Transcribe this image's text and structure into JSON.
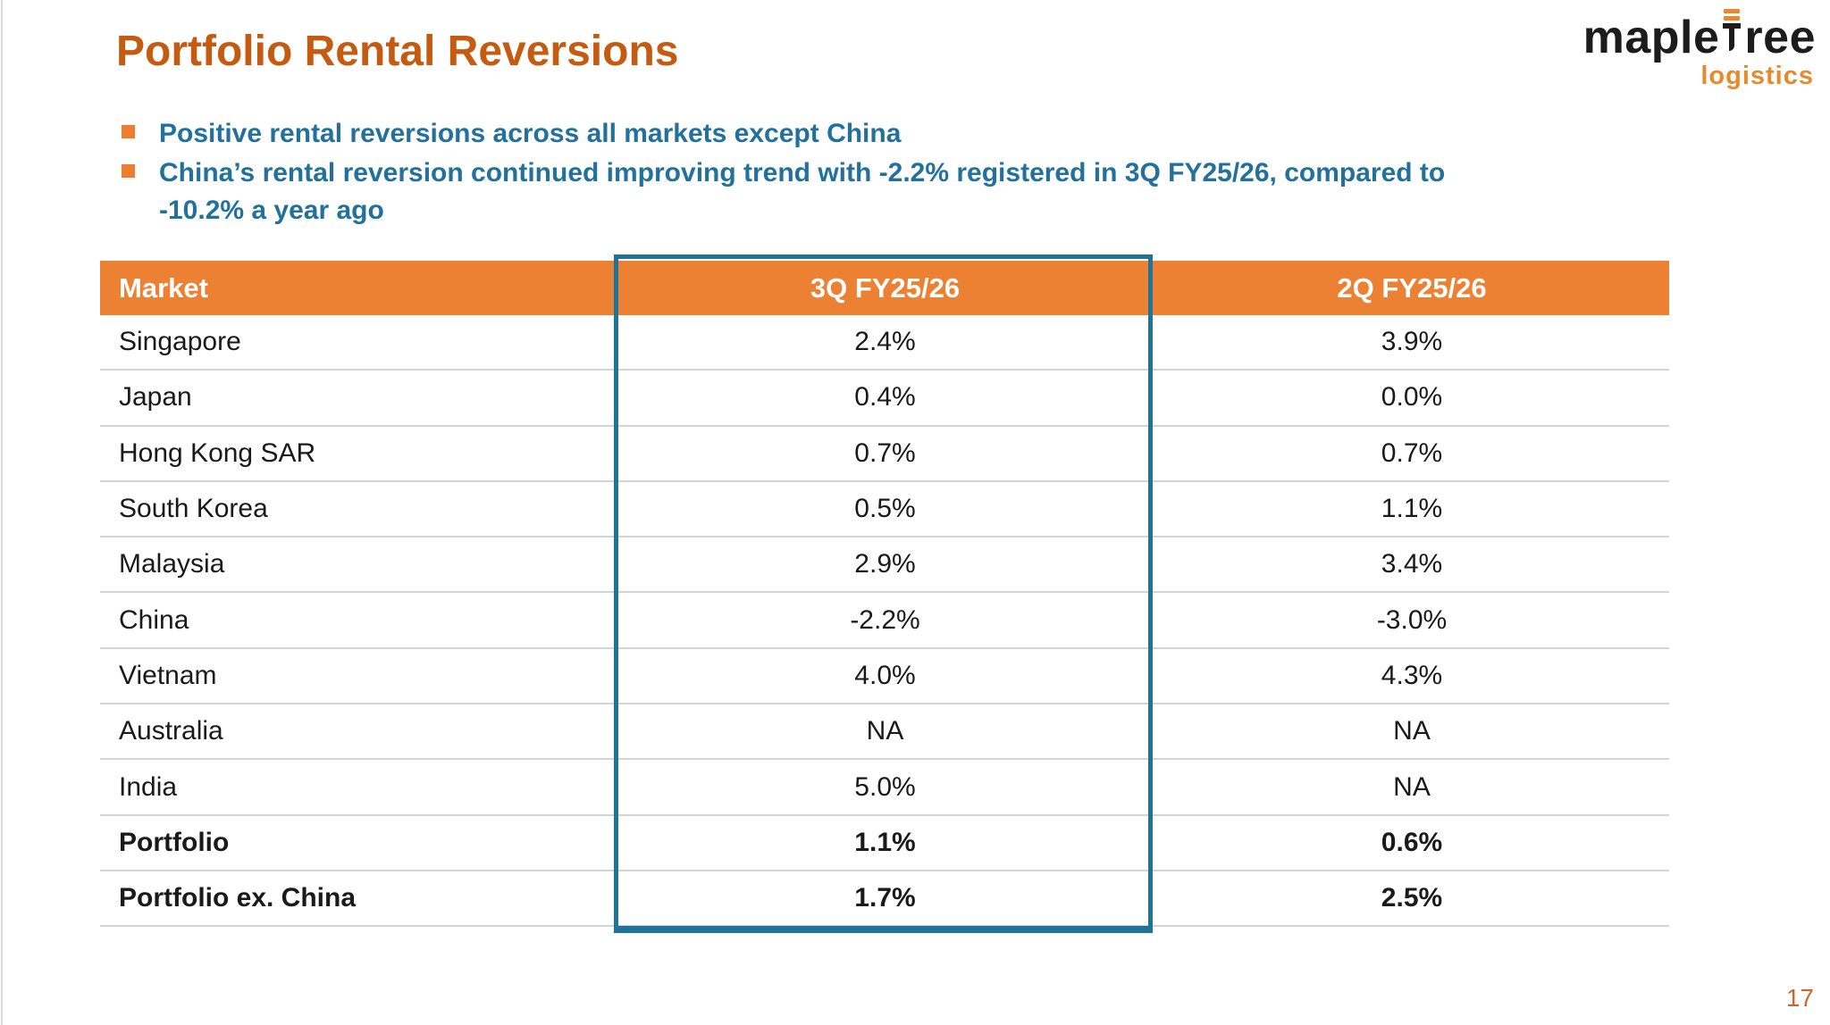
{
  "slide": {
    "title": "Portfolio Rental Reversions",
    "page_number": "17"
  },
  "logo": {
    "brand_full": "mapletree",
    "brand_prefix": "maple",
    "brand_suffix": "ree",
    "division": "logistics"
  },
  "bullets": [
    {
      "lines": [
        "Positive rental reversions across all markets except China",
        ""
      ]
    },
    {
      "lines": [
        "China’s rental reversion continued improving trend with -2.2% registered in 3Q FY25/26, compared to",
        "-10.2% a year ago"
      ]
    }
  ],
  "table": {
    "columns": [
      "Market",
      "3Q FY25/26",
      "2Q FY25/26"
    ],
    "highlighted_column": "3Q FY25/26",
    "rows": [
      {
        "market": "Singapore",
        "q3": "2.4%",
        "q2": "3.9%"
      },
      {
        "market": "Japan",
        "q3": "0.4%",
        "q2": "0.0%"
      },
      {
        "market": "Hong Kong SAR",
        "q3": "0.7%",
        "q2": "0.7%"
      },
      {
        "market": "South Korea",
        "q3": "0.5%",
        "q2": "1.1%"
      },
      {
        "market": "Malaysia",
        "q3": "2.9%",
        "q2": "3.4%"
      },
      {
        "market": "China",
        "q3": "-2.2%",
        "q2": "-3.0%"
      },
      {
        "market": "Vietnam",
        "q3": "4.0%",
        "q2": "4.3%"
      },
      {
        "market": "Australia",
        "q3": "NA",
        "q2": "NA"
      },
      {
        "market": "India",
        "q3": "5.0%",
        "q2": "NA"
      },
      {
        "market": "Portfolio",
        "q3": "1.1%",
        "q2": "0.6%"
      },
      {
        "market": "Portfolio ex. China",
        "q3": "1.7%",
        "q2": "2.5%"
      }
    ]
  },
  "colors": {
    "header_orange": "#EC8033",
    "title_orange": "#C55A11",
    "bullet_blue": "#21719C",
    "highlight_border_teal": "#1F7499",
    "bottom_rule_orange": "#DE9049",
    "page_number_orange": "#C8692F",
    "logo_orange": "#E8892B"
  }
}
